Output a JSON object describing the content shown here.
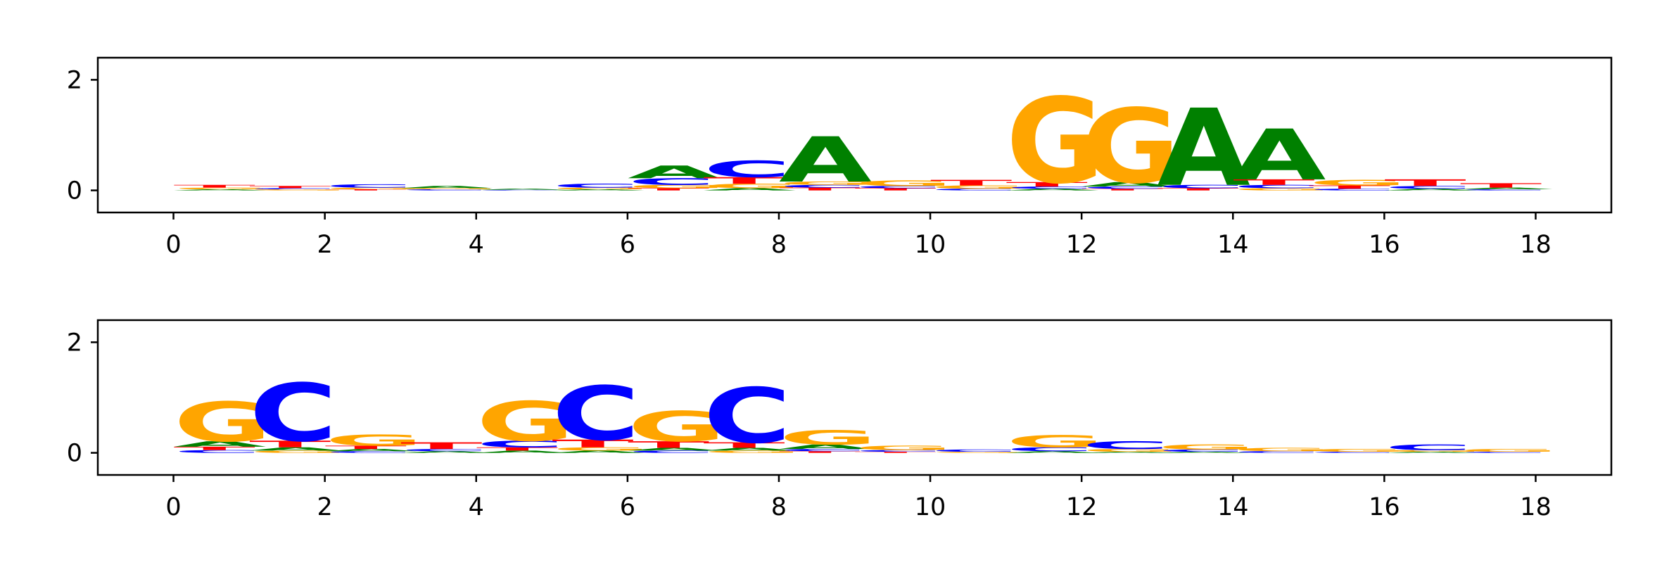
{
  "colors": {
    "A": "#008000",
    "C": "#0000ff",
    "G": "#ffa500",
    "T": "#ff0000",
    "axis": "#000000"
  },
  "chart_data": [
    {
      "type": "sequence-logo",
      "title": "",
      "xlabel": "",
      "ylabel": "",
      "xlim": [
        -1,
        19
      ],
      "ylim": [
        -0.4,
        2.4
      ],
      "xticks": [
        0,
        2,
        4,
        6,
        8,
        10,
        12,
        14,
        16,
        18
      ],
      "xtick_labels": [
        "0",
        "2",
        "4",
        "6",
        "8",
        "10",
        "12",
        "14",
        "16",
        "18"
      ],
      "yticks": [
        0,
        2
      ],
      "ytick_labels": [
        "0",
        "2"
      ],
      "positions": [
        {
          "pos": 0,
          "letters": [
            {
              "base": "T",
              "height": 0.05
            },
            {
              "base": "G",
              "height": 0.03
            },
            {
              "base": "A",
              "height": 0.02
            }
          ]
        },
        {
          "pos": 1,
          "letters": [
            {
              "base": "T",
              "height": 0.04
            },
            {
              "base": "G",
              "height": 0.02
            },
            {
              "base": "C",
              "height": 0.02
            }
          ]
        },
        {
          "pos": 2,
          "letters": [
            {
              "base": "C",
              "height": 0.06
            },
            {
              "base": "G",
              "height": 0.03
            },
            {
              "base": "T",
              "height": 0.02
            }
          ]
        },
        {
          "pos": 3,
          "letters": [
            {
              "base": "A",
              "height": 0.04
            },
            {
              "base": "C",
              "height": 0.02
            },
            {
              "base": "G",
              "height": 0.02
            }
          ]
        },
        {
          "pos": 4,
          "letters": [
            {
              "base": "A",
              "height": 0.02
            },
            {
              "base": "C",
              "height": 0.01
            }
          ]
        },
        {
          "pos": 5,
          "letters": [
            {
              "base": "C",
              "height": 0.07
            },
            {
              "base": "G",
              "height": 0.03
            },
            {
              "base": "A",
              "height": 0.02
            }
          ]
        },
        {
          "pos": 6,
          "letters": [
            {
              "base": "A",
              "height": 0.23
            },
            {
              "base": "C",
              "height": 0.12
            },
            {
              "base": "G",
              "height": 0.06
            },
            {
              "base": "T",
              "height": 0.04
            }
          ]
        },
        {
          "pos": 7,
          "letters": [
            {
              "base": "C",
              "height": 0.3
            },
            {
              "base": "T",
              "height": 0.12
            },
            {
              "base": "G",
              "height": 0.08
            },
            {
              "base": "A",
              "height": 0.04
            }
          ]
        },
        {
          "pos": 8,
          "letters": [
            {
              "base": "A",
              "height": 0.82
            },
            {
              "base": "G",
              "height": 0.06
            },
            {
              "base": "T",
              "height": 0.05
            },
            {
              "base": "C",
              "height": 0.05
            }
          ]
        },
        {
          "pos": 9,
          "letters": [
            {
              "base": "G",
              "height": 0.1
            },
            {
              "base": "T",
              "height": 0.04
            },
            {
              "base": "C",
              "height": 0.04
            }
          ]
        },
        {
          "pos": 10,
          "letters": [
            {
              "base": "T",
              "height": 0.1
            },
            {
              "base": "G",
              "height": 0.06
            },
            {
              "base": "C",
              "height": 0.03
            }
          ]
        },
        {
          "pos": 11,
          "letters": [
            {
              "base": "G",
              "height": 1.55
            },
            {
              "base": "T",
              "height": 0.08
            },
            {
              "base": "C",
              "height": 0.04
            },
            {
              "base": "A",
              "height": 0.03
            }
          ]
        },
        {
          "pos": 12,
          "letters": [
            {
              "base": "G",
              "height": 1.35
            },
            {
              "base": "A",
              "height": 0.08
            },
            {
              "base": "C",
              "height": 0.04
            },
            {
              "base": "T",
              "height": 0.03
            }
          ]
        },
        {
          "pos": 13,
          "letters": [
            {
              "base": "A",
              "height": 1.4
            },
            {
              "base": "C",
              "height": 0.06
            },
            {
              "base": "T",
              "height": 0.04
            }
          ]
        },
        {
          "pos": 14,
          "letters": [
            {
              "base": "A",
              "height": 0.92
            },
            {
              "base": "T",
              "height": 0.1
            },
            {
              "base": "C",
              "height": 0.06
            },
            {
              "base": "G",
              "height": 0.04
            }
          ]
        },
        {
          "pos": 15,
          "letters": [
            {
              "base": "G",
              "height": 0.1
            },
            {
              "base": "T",
              "height": 0.06
            },
            {
              "base": "C",
              "height": 0.03
            }
          ]
        },
        {
          "pos": 16,
          "letters": [
            {
              "base": "T",
              "height": 0.12
            },
            {
              "base": "C",
              "height": 0.05
            },
            {
              "base": "A",
              "height": 0.03
            }
          ]
        },
        {
          "pos": 17,
          "letters": [
            {
              "base": "T",
              "height": 0.08
            },
            {
              "base": "A",
              "height": 0.03
            },
            {
              "base": "C",
              "height": 0.02
            }
          ]
        }
      ]
    },
    {
      "type": "sequence-logo",
      "title": "",
      "xlabel": "",
      "ylabel": "",
      "xlim": [
        -1,
        19
      ],
      "ylim": [
        -0.4,
        2.4
      ],
      "xticks": [
        0,
        2,
        4,
        6,
        8,
        10,
        12,
        14,
        16,
        18
      ],
      "xtick_labels": [
        "0",
        "2",
        "4",
        "6",
        "8",
        "10",
        "12",
        "14",
        "16",
        "18"
      ],
      "yticks": [
        0,
        2
      ],
      "ytick_labels": [
        "0",
        "2"
      ],
      "positions": [
        {
          "pos": 0,
          "letters": [
            {
              "base": "G",
              "height": 0.72
            },
            {
              "base": "A",
              "height": 0.1
            },
            {
              "base": "T",
              "height": 0.06
            },
            {
              "base": "C",
              "height": 0.05
            }
          ]
        },
        {
          "pos": 1,
          "letters": [
            {
              "base": "C",
              "height": 1.05
            },
            {
              "base": "T",
              "height": 0.12
            },
            {
              "base": "A",
              "height": 0.06
            },
            {
              "base": "G",
              "height": 0.04
            }
          ]
        },
        {
          "pos": 2,
          "letters": [
            {
              "base": "G",
              "height": 0.2
            },
            {
              "base": "T",
              "height": 0.06
            },
            {
              "base": "A",
              "height": 0.04
            },
            {
              "base": "C",
              "height": 0.03
            }
          ]
        },
        {
          "pos": 3,
          "letters": [
            {
              "base": "T",
              "height": 0.12
            },
            {
              "base": "C",
              "height": 0.04
            },
            {
              "base": "A",
              "height": 0.03
            }
          ]
        },
        {
          "pos": 4,
          "letters": [
            {
              "base": "G",
              "height": 0.72
            },
            {
              "base": "C",
              "height": 0.12
            },
            {
              "base": "T",
              "height": 0.06
            },
            {
              "base": "A",
              "height": 0.04
            }
          ]
        },
        {
          "pos": 5,
          "letters": [
            {
              "base": "C",
              "height": 0.98
            },
            {
              "base": "T",
              "height": 0.14
            },
            {
              "base": "G",
              "height": 0.06
            },
            {
              "base": "A",
              "height": 0.04
            }
          ]
        },
        {
          "pos": 6,
          "letters": [
            {
              "base": "G",
              "height": 0.55
            },
            {
              "base": "T",
              "height": 0.12
            },
            {
              "base": "A",
              "height": 0.05
            },
            {
              "base": "C",
              "height": 0.04
            }
          ]
        },
        {
          "pos": 7,
          "letters": [
            {
              "base": "C",
              "height": 1.0
            },
            {
              "base": "T",
              "height": 0.1
            },
            {
              "base": "A",
              "height": 0.05
            },
            {
              "base": "G",
              "height": 0.04
            }
          ]
        },
        {
          "pos": 8,
          "letters": [
            {
              "base": "G",
              "height": 0.26
            },
            {
              "base": "A",
              "height": 0.08
            },
            {
              "base": "C",
              "height": 0.04
            },
            {
              "base": "T",
              "height": 0.03
            }
          ]
        },
        {
          "pos": 9,
          "letters": [
            {
              "base": "G",
              "height": 0.08
            },
            {
              "base": "C",
              "height": 0.03
            },
            {
              "base": "T",
              "height": 0.02
            }
          ]
        },
        {
          "pos": 10,
          "letters": [
            {
              "base": "C",
              "height": 0.04
            },
            {
              "base": "G",
              "height": 0.02
            }
          ]
        },
        {
          "pos": 11,
          "letters": [
            {
              "base": "G",
              "height": 0.22
            },
            {
              "base": "C",
              "height": 0.07
            },
            {
              "base": "A",
              "height": 0.03
            }
          ]
        },
        {
          "pos": 12,
          "letters": [
            {
              "base": "C",
              "height": 0.14
            },
            {
              "base": "G",
              "height": 0.05
            },
            {
              "base": "A",
              "height": 0.02
            }
          ]
        },
        {
          "pos": 13,
          "letters": [
            {
              "base": "G",
              "height": 0.09
            },
            {
              "base": "C",
              "height": 0.04
            },
            {
              "base": "A",
              "height": 0.02
            }
          ]
        },
        {
          "pos": 14,
          "letters": [
            {
              "base": "G",
              "height": 0.06
            },
            {
              "base": "C",
              "height": 0.03
            }
          ]
        },
        {
          "pos": 15,
          "letters": [
            {
              "base": "G",
              "height": 0.05
            },
            {
              "base": "C",
              "height": 0.02
            }
          ]
        },
        {
          "pos": 16,
          "letters": [
            {
              "base": "C",
              "height": 0.1
            },
            {
              "base": "G",
              "height": 0.03
            },
            {
              "base": "A",
              "height": 0.02
            }
          ]
        },
        {
          "pos": 17,
          "letters": [
            {
              "base": "G",
              "height": 0.05
            },
            {
              "base": "C",
              "height": 0.02
            }
          ]
        }
      ]
    }
  ]
}
